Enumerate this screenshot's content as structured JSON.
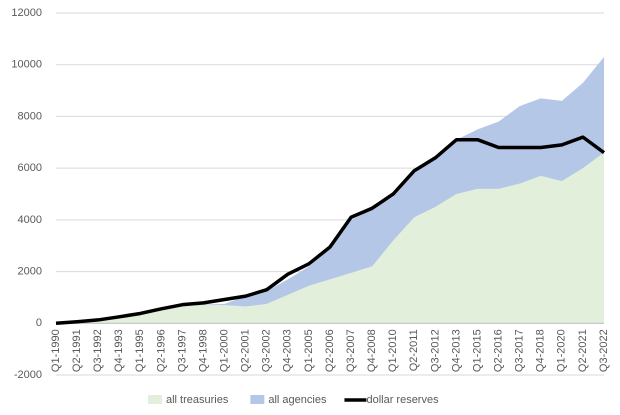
{
  "chart_data": {
    "type": "stacked-area-line",
    "categories": [
      "Q1-1990",
      "Q2-1991",
      "Q3-1992",
      "Q4-1993",
      "Q1-1995",
      "Q2-1996",
      "Q3-1997",
      "Q4-1998",
      "Q1-2000",
      "Q2-2001",
      "Q3-2002",
      "Q4-2003",
      "Q1-2005",
      "Q2-2006",
      "Q3-2007",
      "Q4-2008",
      "Q1-2010",
      "Q2-2011",
      "Q3-2012",
      "Q4-2013",
      "Q1-2015",
      "Q2-2016",
      "Q3-2017",
      "Q4-2018",
      "Q1-2020",
      "Q2-2021",
      "Q3-2022"
    ],
    "series": [
      {
        "name": "all treasuries",
        "kind": "area",
        "color": "#e2efda",
        "values": [
          0,
          60,
          120,
          220,
          350,
          540,
          680,
          700,
          700,
          650,
          750,
          1100,
          1450,
          1700,
          1950,
          2200,
          3200,
          4100,
          4500,
          5000,
          5200,
          5200,
          5400,
          5700,
          5500,
          6000,
          6600
        ]
      },
      {
        "name": "all agencies",
        "kind": "area",
        "color": "#b4c7e7",
        "values": [
          0,
          0,
          0,
          0,
          0,
          0,
          0,
          20,
          50,
          400,
          500,
          600,
          750,
          1200,
          2050,
          2200,
          1700,
          1700,
          1900,
          2100,
          2300,
          2600,
          3000,
          3000,
          3100,
          3300,
          3700
        ]
      },
      {
        "name": "dollar reserves",
        "kind": "line",
        "color": "#000000",
        "values": [
          0,
          60,
          130,
          250,
          380,
          560,
          720,
          790,
          920,
          1050,
          1300,
          1900,
          2300,
          2950,
          4100,
          4450,
          5000,
          5900,
          6400,
          7100,
          7100,
          6800,
          6800,
          6800,
          6900,
          7200,
          6600
        ]
      }
    ],
    "ylim": [
      -2000,
      12000
    ],
    "yticks": [
      -2000,
      0,
      2000,
      4000,
      6000,
      8000,
      10000,
      12000
    ],
    "grid": true
  }
}
